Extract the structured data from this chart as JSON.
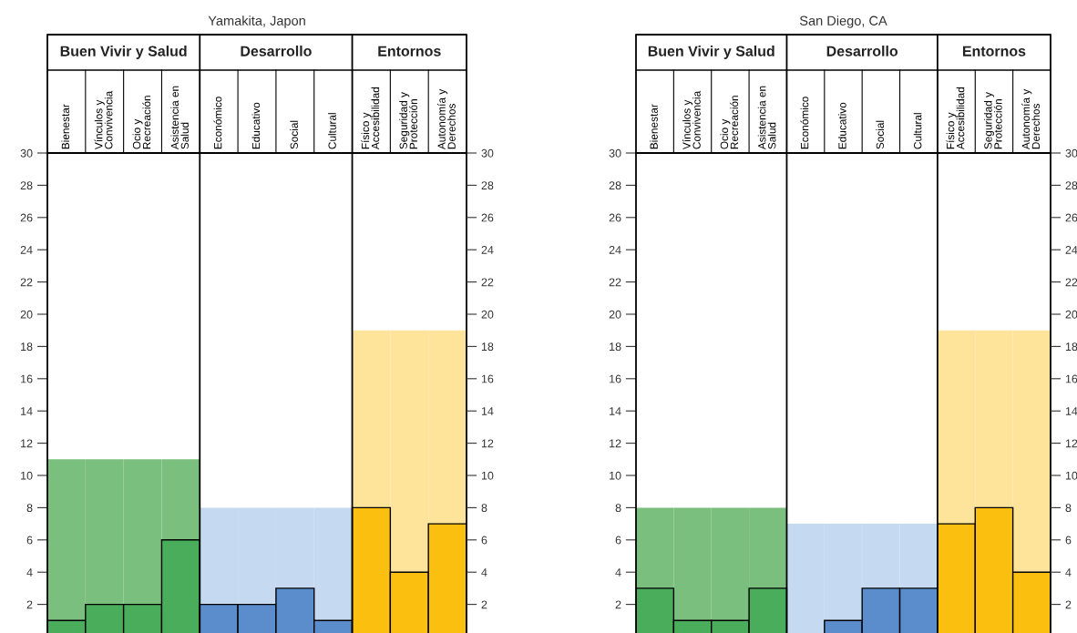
{
  "chart_data": [
    {
      "type": "bar",
      "stacked": true,
      "title": "Yamakita, Japon",
      "categories": [
        "Bienestar",
        "Vínculos y\nConvivencia",
        "Ocio y\nRecreación",
        "Asistencia en\nSalud",
        "Económico",
        "Educativo",
        "Social",
        "Cultural",
        "Físico y\nAccesibilidad",
        "Seguridad y\nProtección",
        "Autonomía y\nDerechos"
      ],
      "series": [
        {
          "colors": [
            "#4aad5b",
            "#4aad5b",
            "#4aad5b",
            "#4aad5b",
            "#5b8ccb",
            "#5b8ccb",
            "#5b8ccb",
            "#5b8ccb",
            "#fbbf0f",
            "#fbbf0f",
            "#fbbf0f"
          ],
          "values": [
            1,
            2,
            2,
            6,
            2,
            2,
            3,
            1,
            8,
            4,
            7
          ]
        },
        {
          "colors": [
            "#7bbf7f",
            "#7bbf7f",
            "#7bbf7f",
            "#7bbf7f",
            "#c5d9f0",
            "#c5d9f0",
            "#c5d9f0",
            "#c5d9f0",
            "#fde49a",
            "#fde49a",
            "#fde49a"
          ],
          "values": [
            10,
            9,
            9,
            5,
            6,
            6,
            5,
            7,
            11,
            15,
            12
          ]
        }
      ],
      "annotations": [
        "Buen Vivir y Salud",
        "Desarrollo",
        "Entornos"
      ],
      "ylim": [
        0,
        30
      ],
      "yticks": [
        2,
        4,
        6,
        8,
        10,
        12,
        14,
        16,
        18,
        20,
        22,
        24,
        26,
        28,
        30
      ],
      "y2lim": [
        0,
        30
      ],
      "y2ticks": [
        2,
        4,
        6,
        8,
        10,
        12,
        14,
        16,
        18,
        20,
        22,
        24,
        26,
        28,
        30
      ]
    },
    {
      "type": "bar",
      "stacked": true,
      "title": "San Diego, CA",
      "categories": [
        "Bienestar",
        "Vínculos y\nConvivencia",
        "Ocio y\nRecreación",
        "Asistencia en\nSalud",
        "Económico",
        "Educativo",
        "Social",
        "Cultural",
        "Físico y\nAccesibilidad",
        "Seguridad y\nProtección",
        "Autonomía y\nDerechos"
      ],
      "series": [
        {
          "colors": [
            "#4aad5b",
            "#4aad5b",
            "#4aad5b",
            "#4aad5b",
            "#5b8ccb",
            "#5b8ccb",
            "#5b8ccb",
            "#5b8ccb",
            "#fbbf0f",
            "#fbbf0f",
            "#fbbf0f"
          ],
          "values": [
            3,
            1,
            1,
            3,
            0,
            1,
            3,
            3,
            7,
            8,
            4
          ]
        },
        {
          "colors": [
            "#7bbf7f",
            "#7bbf7f",
            "#7bbf7f",
            "#7bbf7f",
            "#c5d9f0",
            "#c5d9f0",
            "#c5d9f0",
            "#c5d9f0",
            "#fde49a",
            "#fde49a",
            "#fde49a"
          ],
          "values": [
            5,
            7,
            7,
            5,
            7,
            6,
            4,
            4,
            12,
            11,
            15
          ]
        }
      ],
      "annotations": [
        "Buen Vivir y Salud",
        "Desarrollo",
        "Entornos"
      ],
      "ylim": [
        0,
        30
      ],
      "yticks": [
        2,
        4,
        6,
        8,
        10,
        12,
        14,
        16,
        18,
        20,
        22,
        24,
        26,
        28,
        30
      ],
      "y2lim": [
        0,
        30
      ],
      "y2ticks": [
        2,
        4,
        6,
        8,
        10,
        12,
        14,
        16,
        18,
        20,
        22,
        24,
        26,
        28,
        30
      ]
    }
  ]
}
